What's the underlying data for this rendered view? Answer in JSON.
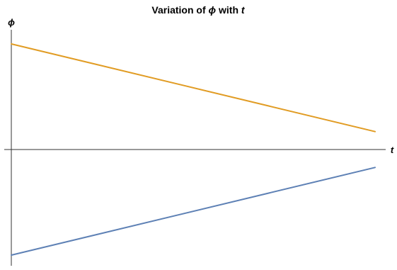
{
  "chart_data": {
    "type": "line",
    "title_prefix": "Variation of ",
    "title_symbol": "ϕ",
    "title_middle": " with ",
    "title_variable": "t",
    "xlabel": "t",
    "ylabel": "ϕ",
    "xlim": [
      0,
      1
    ],
    "ylim": [
      -1.03,
      1.03
    ],
    "x_axis_at": 0,
    "x_ticks": [],
    "y_ticks": [],
    "grid": false,
    "legend": "none",
    "series": [
      {
        "color": "#E19C24",
        "x": [
          0,
          1
        ],
        "y": [
          1.0,
          0.17
        ]
      },
      {
        "color": "#5E81B5",
        "x": [
          0,
          1
        ],
        "y": [
          -1.0,
          -0.17
        ]
      }
    ]
  }
}
